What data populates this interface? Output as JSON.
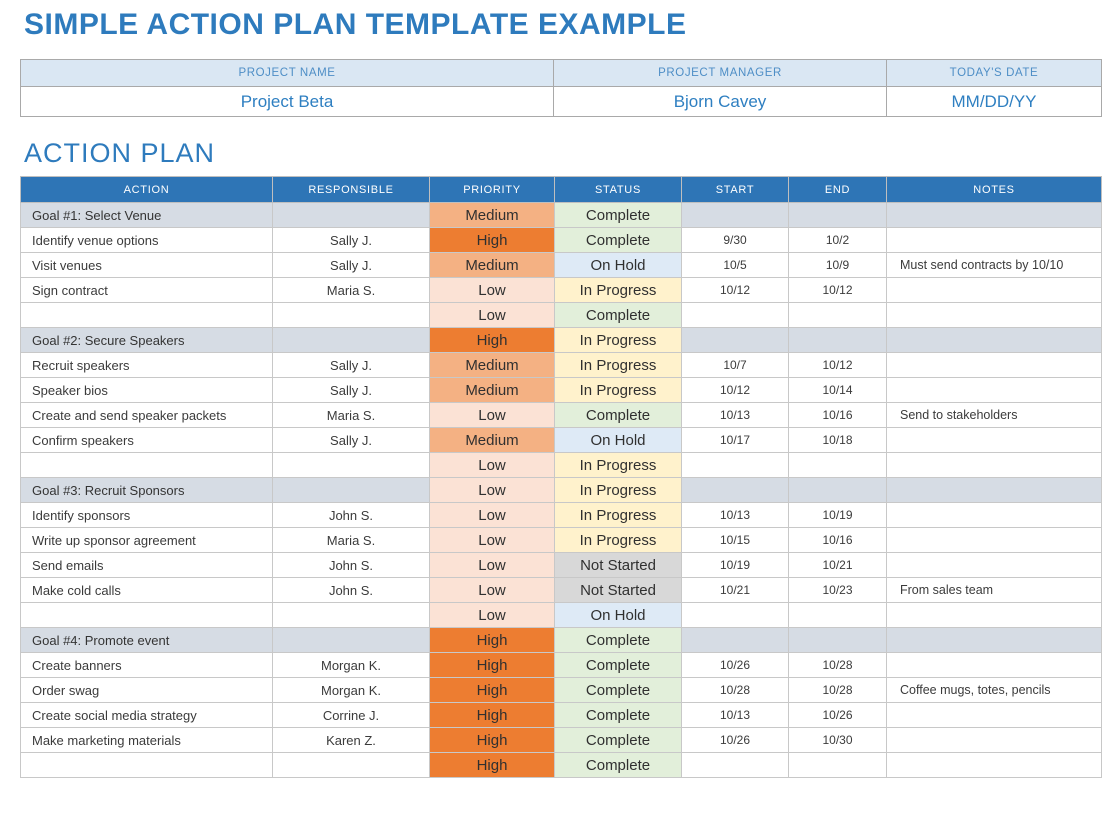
{
  "page_title": "SIMPLE ACTION PLAN TEMPLATE EXAMPLE",
  "section_title": "ACTION PLAN",
  "colors": {
    "title_blue": "#2e7bbd",
    "table_header_blue": "#2e75b6",
    "info_header_bg": "#dae7f3",
    "goal_row_bg": "#d6dce4"
  },
  "project_info": {
    "headers": [
      "PROJECT NAME",
      "PROJECT MANAGER",
      "TODAY'S DATE"
    ],
    "values": [
      "Project Beta",
      "Bjorn Cavey",
      "MM/DD/YY"
    ]
  },
  "table": {
    "headers": [
      "ACTION",
      "RESPONSIBLE",
      "PRIORITY",
      "STATUS",
      "START",
      "END",
      "NOTES"
    ],
    "priority_colors": {
      "High": "#ed7d31",
      "Medium": "#f4b183",
      "Low": "#fbe2d5"
    },
    "status_colors": {
      "Complete": "#e2efda",
      "On Hold": "#deeaf6",
      "In Progress": "#fff2cc",
      "Not Started": "#d8d8d8"
    },
    "rows": [
      {
        "type": "goal",
        "action": "Goal #1:  Select Venue",
        "responsible": "",
        "priority": "Medium",
        "status": "Complete",
        "start": "",
        "end": "",
        "notes": ""
      },
      {
        "type": "task",
        "action": "Identify venue options",
        "responsible": "Sally J.",
        "priority": "High",
        "status": "Complete",
        "start": "9/30",
        "end": "10/2",
        "notes": ""
      },
      {
        "type": "task",
        "action": "Visit venues",
        "responsible": "Sally J.",
        "priority": "Medium",
        "status": "On Hold",
        "start": "10/5",
        "end": "10/9",
        "notes": "Must send contracts by 10/10"
      },
      {
        "type": "task",
        "action": "Sign contract",
        "responsible": "Maria S.",
        "priority": "Low",
        "status": "In Progress",
        "start": "10/12",
        "end": "10/12",
        "notes": ""
      },
      {
        "type": "task",
        "action": "",
        "responsible": "",
        "priority": "Low",
        "status": "Complete",
        "start": "",
        "end": "",
        "notes": ""
      },
      {
        "type": "goal",
        "action": "Goal #2: Secure Speakers",
        "responsible": "",
        "priority": "High",
        "status": "In Progress",
        "start": "",
        "end": "",
        "notes": ""
      },
      {
        "type": "task",
        "action": "Recruit speakers",
        "responsible": "Sally J.",
        "priority": "Medium",
        "status": "In Progress",
        "start": "10/7",
        "end": "10/12",
        "notes": ""
      },
      {
        "type": "task",
        "action": "Speaker bios",
        "responsible": "Sally J.",
        "priority": "Medium",
        "status": "In Progress",
        "start": "10/12",
        "end": "10/14",
        "notes": ""
      },
      {
        "type": "task",
        "action": "Create and send speaker packets",
        "responsible": "Maria S.",
        "priority": "Low",
        "status": "Complete",
        "start": "10/13",
        "end": "10/16",
        "notes": "Send to stakeholders"
      },
      {
        "type": "task",
        "action": "Confirm speakers",
        "responsible": "Sally J.",
        "priority": "Medium",
        "status": "On Hold",
        "start": "10/17",
        "end": "10/18",
        "notes": ""
      },
      {
        "type": "task",
        "action": "",
        "responsible": "",
        "priority": "Low",
        "status": "In Progress",
        "start": "",
        "end": "",
        "notes": ""
      },
      {
        "type": "goal",
        "action": "Goal #3: Recruit Sponsors",
        "responsible": "",
        "priority": "Low",
        "status": "In Progress",
        "start": "",
        "end": "",
        "notes": ""
      },
      {
        "type": "task",
        "action": "Identify sponsors",
        "responsible": "John S.",
        "priority": "Low",
        "status": "In Progress",
        "start": "10/13",
        "end": "10/19",
        "notes": ""
      },
      {
        "type": "task",
        "action": "Write up sponsor agreement",
        "responsible": "Maria S.",
        "priority": "Low",
        "status": "In Progress",
        "start": "10/15",
        "end": "10/16",
        "notes": ""
      },
      {
        "type": "task",
        "action": "Send emails",
        "responsible": "John S.",
        "priority": "Low",
        "status": "Not Started",
        "start": "10/19",
        "end": "10/21",
        "notes": ""
      },
      {
        "type": "task",
        "action": "Make cold calls",
        "responsible": "John S.",
        "priority": "Low",
        "status": "Not Started",
        "start": "10/21",
        "end": "10/23",
        "notes": "From sales team"
      },
      {
        "type": "task",
        "action": "",
        "responsible": "",
        "priority": "Low",
        "status": "On Hold",
        "start": "",
        "end": "",
        "notes": ""
      },
      {
        "type": "goal",
        "action": "Goal #4: Promote event",
        "responsible": "",
        "priority": "High",
        "status": "Complete",
        "start": "",
        "end": "",
        "notes": ""
      },
      {
        "type": "task",
        "action": "Create banners",
        "responsible": "Morgan K.",
        "priority": "High",
        "status": "Complete",
        "start": "10/26",
        "end": "10/28",
        "notes": ""
      },
      {
        "type": "task",
        "action": "Order swag",
        "responsible": "Morgan K.",
        "priority": "High",
        "status": "Complete",
        "start": "10/28",
        "end": "10/28",
        "notes": "Coffee mugs, totes, pencils"
      },
      {
        "type": "task",
        "action": "Create social media strategy",
        "responsible": "Corrine J.",
        "priority": "High",
        "status": "Complete",
        "start": "10/13",
        "end": "10/26",
        "notes": ""
      },
      {
        "type": "task",
        "action": "Make marketing materials",
        "responsible": "Karen Z.",
        "priority": "High",
        "status": "Complete",
        "start": "10/26",
        "end": "10/30",
        "notes": ""
      },
      {
        "type": "task",
        "action": "",
        "responsible": "",
        "priority": "High",
        "status": "Complete",
        "start": "",
        "end": "",
        "notes": ""
      }
    ]
  }
}
